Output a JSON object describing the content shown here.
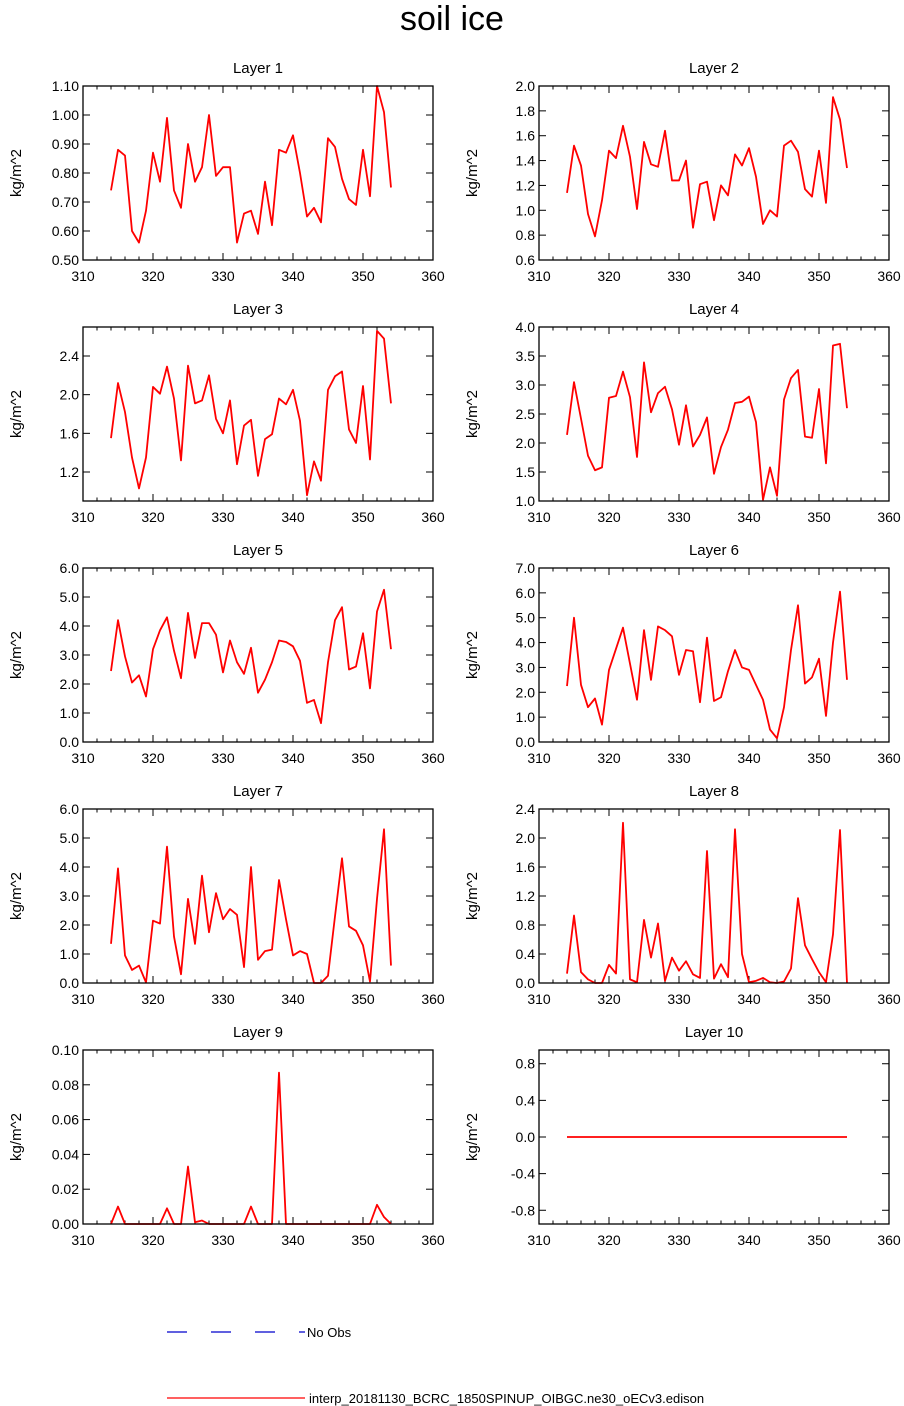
{
  "title": "soil ice",
  "colors": {
    "series": "#ff0000",
    "obs": "#0000cc",
    "axis": "#000000"
  },
  "legend": {
    "obs_label": "No Obs",
    "model_label": "interp_20181130_BCRC_1850SPINUP_OIBGC.ne30_oECv3.edison"
  },
  "chart_data": [
    {
      "type": "line",
      "title": "Layer 1",
      "xlabel": "",
      "ylabel": "kg/m^2",
      "xlim": [
        310,
        360
      ],
      "ylim": [
        0.5,
        1.1
      ],
      "xticks": [
        310,
        320,
        330,
        340,
        350,
        360
      ],
      "yticks": [
        0.5,
        0.6,
        0.7,
        0.8,
        0.9,
        1.0,
        1.1
      ],
      "ytick_labels": [
        "0.50",
        "0.60",
        "0.70",
        "0.80",
        "0.90",
        "1.00",
        "1.10"
      ],
      "x_start": 314,
      "values": [
        0.74,
        0.88,
        0.86,
        0.6,
        0.56,
        0.67,
        0.87,
        0.77,
        0.99,
        0.74,
        0.68,
        0.9,
        0.77,
        0.82,
        1.0,
        0.79,
        0.82,
        0.82,
        0.56,
        0.66,
        0.67,
        0.59,
        0.77,
        0.62,
        0.88,
        0.87,
        0.93,
        0.8,
        0.65,
        0.68,
        0.63,
        0.92,
        0.89,
        0.78,
        0.71,
        0.69,
        0.88,
        0.72,
        1.1,
        1.01,
        0.75
      ]
    },
    {
      "type": "line",
      "title": "Layer 2",
      "xlabel": "",
      "ylabel": "kg/m^2",
      "xlim": [
        310,
        360
      ],
      "ylim": [
        0.6,
        2.0
      ],
      "xticks": [
        310,
        320,
        330,
        340,
        350,
        360
      ],
      "yticks": [
        0.6,
        0.8,
        1.0,
        1.2,
        1.4,
        1.6,
        1.8,
        2.0
      ],
      "ytick_labels": [
        "0.6",
        "0.8",
        "1.0",
        "1.2",
        "1.4",
        "1.6",
        "1.8",
        "2.0"
      ],
      "x_start": 314,
      "values": [
        1.14,
        1.52,
        1.36,
        0.97,
        0.79,
        1.08,
        1.48,
        1.42,
        1.68,
        1.43,
        1.01,
        1.55,
        1.37,
        1.35,
        1.64,
        1.24,
        1.24,
        1.4,
        0.86,
        1.21,
        1.23,
        0.92,
        1.2,
        1.12,
        1.45,
        1.36,
        1.5,
        1.27,
        0.89,
        1.0,
        0.95,
        1.52,
        1.56,
        1.47,
        1.17,
        1.11,
        1.48,
        1.06,
        1.91,
        1.73,
        1.34
      ]
    },
    {
      "type": "line",
      "title": "Layer 3",
      "xlabel": "",
      "ylabel": "kg/m^2",
      "xlim": [
        310,
        360
      ],
      "ylim": [
        0.9,
        2.7
      ],
      "xticks": [
        310,
        320,
        330,
        340,
        350,
        360
      ],
      "yticks": [
        1.2,
        1.6,
        2.0,
        2.4
      ],
      "ytick_labels": [
        "1.2",
        "1.6",
        "2.0",
        "2.4"
      ],
      "x_start": 314,
      "values": [
        1.55,
        2.12,
        1.82,
        1.35,
        1.03,
        1.35,
        2.08,
        2.01,
        2.29,
        1.96,
        1.32,
        2.3,
        1.91,
        1.94,
        2.2,
        1.75,
        1.6,
        1.94,
        1.28,
        1.68,
        1.74,
        1.16,
        1.54,
        1.59,
        1.96,
        1.9,
        2.05,
        1.73,
        0.96,
        1.31,
        1.11,
        2.05,
        2.19,
        2.24,
        1.64,
        1.5,
        2.09,
        1.33,
        2.66,
        2.58,
        1.91
      ]
    },
    {
      "type": "line",
      "title": "Layer 4",
      "xlabel": "",
      "ylabel": "kg/m^2",
      "xlim": [
        310,
        360
      ],
      "ylim": [
        1.0,
        4.0
      ],
      "xticks": [
        310,
        320,
        330,
        340,
        350,
        360
      ],
      "yticks": [
        1.0,
        1.5,
        2.0,
        2.5,
        3.0,
        3.5,
        4.0
      ],
      "ytick_labels": [
        "1.0",
        "1.5",
        "2.0",
        "2.5",
        "3.0",
        "3.5",
        "4.0"
      ],
      "x_start": 314,
      "values": [
        2.14,
        3.05,
        2.42,
        1.78,
        1.53,
        1.58,
        2.78,
        2.81,
        3.23,
        2.79,
        1.76,
        3.39,
        2.53,
        2.86,
        2.97,
        2.58,
        1.97,
        2.65,
        1.94,
        2.14,
        2.44,
        1.47,
        1.93,
        2.23,
        2.69,
        2.71,
        2.8,
        2.36,
        1.02,
        1.58,
        1.09,
        2.75,
        3.12,
        3.26,
        2.11,
        2.09,
        2.93,
        1.65,
        3.68,
        3.71,
        2.6
      ]
    },
    {
      "type": "line",
      "title": "Layer 5",
      "xlabel": "",
      "ylabel": "kg/m^2",
      "xlim": [
        310,
        360
      ],
      "ylim": [
        0.0,
        6.0
      ],
      "xticks": [
        310,
        320,
        330,
        340,
        350,
        360
      ],
      "yticks": [
        0,
        1,
        2,
        3,
        4,
        5,
        6
      ],
      "ytick_labels": [
        "0.0",
        "1.0",
        "2.0",
        "3.0",
        "4.0",
        "5.0",
        "6.0"
      ],
      "x_start": 314,
      "values": [
        2.45,
        4.2,
        2.95,
        2.05,
        2.3,
        1.57,
        3.2,
        3.85,
        4.3,
        3.15,
        2.2,
        4.45,
        2.9,
        4.1,
        4.1,
        3.7,
        2.4,
        3.5,
        2.75,
        2.35,
        3.25,
        1.7,
        2.15,
        2.75,
        3.5,
        3.45,
        3.3,
        2.8,
        1.35,
        1.45,
        0.65,
        2.75,
        4.2,
        4.65,
        2.5,
        2.6,
        3.75,
        1.85,
        4.5,
        5.25,
        3.2
      ]
    },
    {
      "type": "line",
      "title": "Layer 6",
      "xlabel": "",
      "ylabel": "kg/m^2",
      "xlim": [
        310,
        360
      ],
      "ylim": [
        0.0,
        7.0
      ],
      "xticks": [
        310,
        320,
        330,
        340,
        350,
        360
      ],
      "yticks": [
        0,
        1,
        2,
        3,
        4,
        5,
        6,
        7
      ],
      "ytick_labels": [
        "0.0",
        "1.0",
        "2.0",
        "3.0",
        "4.0",
        "5.0",
        "6.0",
        "7.0"
      ],
      "x_start": 314,
      "values": [
        2.25,
        5.0,
        2.3,
        1.4,
        1.75,
        0.7,
        2.9,
        3.75,
        4.6,
        3.15,
        1.7,
        4.5,
        2.5,
        4.65,
        4.5,
        4.25,
        2.7,
        3.7,
        3.65,
        1.6,
        4.2,
        1.65,
        1.8,
        2.85,
        3.7,
        3.0,
        2.9,
        2.3,
        1.7,
        0.5,
        0.15,
        1.4,
        3.7,
        5.5,
        2.35,
        2.6,
        3.35,
        1.05,
        4.0,
        6.05,
        2.5
      ]
    },
    {
      "type": "line",
      "title": "Layer 7",
      "xlabel": "",
      "ylabel": "kg/m^2",
      "xlim": [
        310,
        360
      ],
      "ylim": [
        0.0,
        6.0
      ],
      "xticks": [
        310,
        320,
        330,
        340,
        350,
        360
      ],
      "yticks": [
        0,
        1,
        2,
        3,
        4,
        5,
        6
      ],
      "ytick_labels": [
        "0.0",
        "1.0",
        "2.0",
        "3.0",
        "4.0",
        "5.0",
        "6.0"
      ],
      "x_start": 314,
      "values": [
        1.35,
        3.95,
        0.95,
        0.45,
        0.6,
        0.02,
        2.15,
        2.05,
        4.7,
        1.6,
        0.3,
        2.9,
        1.35,
        3.7,
        1.75,
        3.1,
        2.2,
        2.55,
        2.35,
        0.55,
        4.0,
        0.8,
        1.1,
        1.15,
        3.55,
        2.2,
        0.95,
        1.1,
        1.0,
        0.0,
        0.0,
        0.25,
        2.3,
        4.3,
        1.95,
        1.8,
        1.3,
        0.05,
        2.9,
        5.3,
        0.6
      ]
    },
    {
      "type": "line",
      "title": "Layer 8",
      "xlabel": "",
      "ylabel": "kg/m^2",
      "xlim": [
        310,
        360
      ],
      "ylim": [
        0.0,
        2.4
      ],
      "xticks": [
        310,
        320,
        330,
        340,
        350,
        360
      ],
      "yticks": [
        0,
        0.4,
        0.8,
        1.2,
        1.6,
        2.0,
        2.4
      ],
      "ytick_labels": [
        "0.0",
        "0.4",
        "0.8",
        "1.2",
        "1.6",
        "2.0",
        "2.4"
      ],
      "x_start": 314,
      "values": [
        0.13,
        0.93,
        0.15,
        0.05,
        0.0,
        0.0,
        0.25,
        0.13,
        2.21,
        0.05,
        0.01,
        0.87,
        0.35,
        0.82,
        0.03,
        0.35,
        0.17,
        0.3,
        0.12,
        0.07,
        1.82,
        0.06,
        0.26,
        0.08,
        2.12,
        0.4,
        0.01,
        0.03,
        0.07,
        0.01,
        0.0,
        0.02,
        0.2,
        1.17,
        0.52,
        0.33,
        0.15,
        0.01,
        0.67,
        2.11,
        0.0
      ]
    },
    {
      "type": "line",
      "title": "Layer 9",
      "xlabel": "",
      "ylabel": "kg/m^2",
      "xlim": [
        310,
        360
      ],
      "ylim": [
        0.0,
        0.1
      ],
      "xticks": [
        310,
        320,
        330,
        340,
        350,
        360
      ],
      "yticks": [
        0,
        0.02,
        0.04,
        0.06,
        0.08,
        0.1
      ],
      "ytick_labels": [
        "0.00",
        "0.02",
        "0.04",
        "0.06",
        "0.08",
        "0.10"
      ],
      "x_start": 314,
      "values": [
        0.0,
        0.01,
        0.0,
        0.0,
        0.0,
        0.0,
        0.0,
        0.0,
        0.009,
        0.0,
        0.0,
        0.033,
        0.001,
        0.002,
        0.0,
        0.0,
        0.0,
        0.0,
        0.0,
        0.0,
        0.01,
        0.0,
        0.0,
        0.0,
        0.087,
        0.0,
        0.0,
        0.0,
        0.0,
        0.0,
        0.0,
        0.0,
        0.0,
        0.0,
        0.0,
        0.0,
        0.0,
        0.0,
        0.011,
        0.004,
        0.0
      ]
    },
    {
      "type": "line",
      "title": "Layer 10",
      "xlabel": "",
      "ylabel": "kg/m^2",
      "xlim": [
        310,
        360
      ],
      "ylim": [
        -0.95,
        0.95
      ],
      "xticks": [
        310,
        320,
        330,
        340,
        350,
        360
      ],
      "yticks": [
        -0.8,
        -0.4,
        0.0,
        0.4,
        0.8
      ],
      "ytick_labels": [
        "-0.8",
        "-0.4",
        "0.0",
        "0.4",
        "0.8"
      ],
      "x_start": 314,
      "values": [
        0,
        0,
        0,
        0,
        0,
        0,
        0,
        0,
        0,
        0,
        0,
        0,
        0,
        0,
        0,
        0,
        0,
        0,
        0,
        0,
        0,
        0,
        0,
        0,
        0,
        0,
        0,
        0,
        0,
        0,
        0,
        0,
        0,
        0,
        0,
        0,
        0,
        0,
        0,
        0,
        0
      ]
    }
  ]
}
